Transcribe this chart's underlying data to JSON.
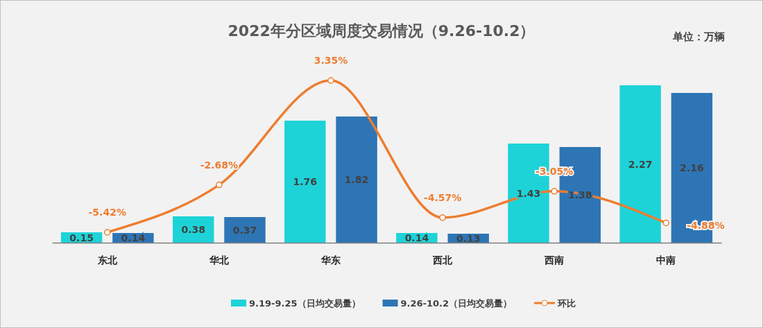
{
  "chart_data": {
    "type": "bar",
    "title": "2022年分区域周度交易情况（9.26-10.2）",
    "annotations": [
      "单位：万辆"
    ],
    "categories": [
      "东北",
      "华北",
      "华东",
      "西北",
      "西南",
      "中南"
    ],
    "series": [
      {
        "name": "9.19-9.25（日均交易量）",
        "color": "#1dd3d8",
        "values": [
          0.15,
          0.38,
          1.76,
          0.14,
          1.43,
          2.27
        ]
      },
      {
        "name": "9.26-10.2（日均交易量）",
        "color": "#2e75b6",
        "values": [
          0.14,
          0.37,
          1.82,
          0.13,
          1.38,
          2.16
        ]
      },
      {
        "name": "环比",
        "type": "line",
        "axis": "y2",
        "color": "#ed7d31",
        "values": [
          -5.42,
          -2.68,
          3.35,
          -4.57,
          -3.05,
          -4.88
        ],
        "value_labels": [
          "-5.42%",
          "-2.68%",
          "3.35%",
          "-4.57%",
          "-3.05%",
          "-4.88%"
        ]
      }
    ],
    "tick_labels": "x",
    "data_labels": true,
    "legend": "bottom",
    "marker": "circle",
    "line_style": "solid"
  }
}
